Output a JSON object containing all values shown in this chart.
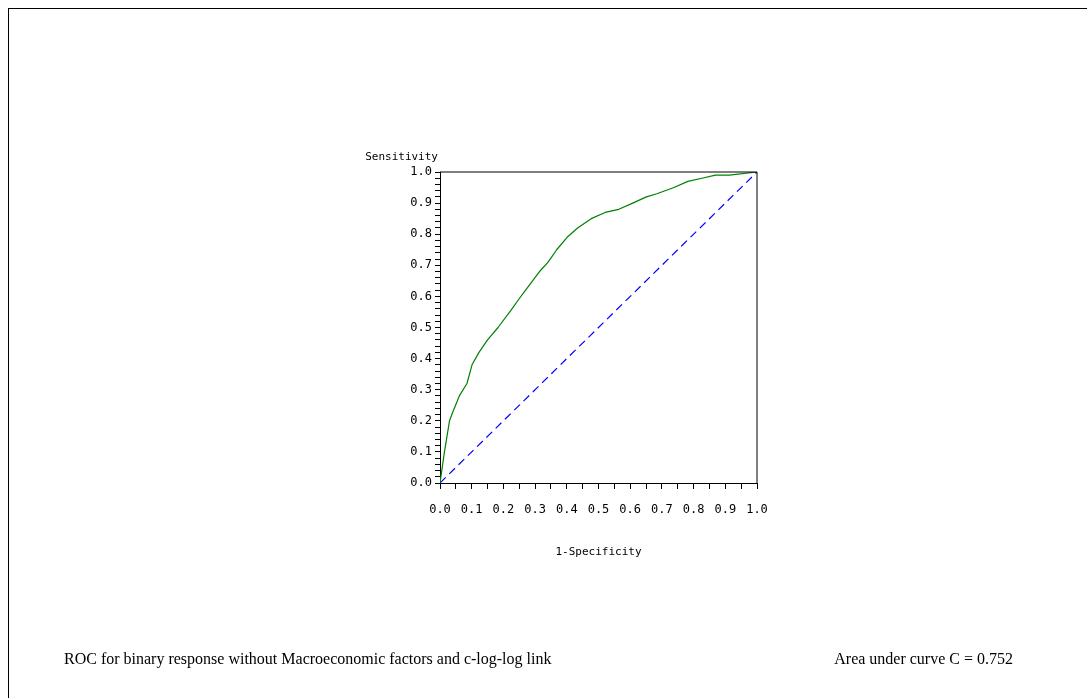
{
  "chart_data": {
    "type": "line",
    "xlabel": "1-Specificity",
    "ylabel": "Sensitivity",
    "annotations": [
      "ROC for binary response without Macroeconomic factors and c-log-log link",
      "Area under curve C = 0.752"
    ],
    "xlim": [
      0,
      1
    ],
    "ylim": [
      0,
      1
    ],
    "xticks": [
      {
        "value": 0,
        "label": "0.0"
      },
      {
        "value": 0.05,
        "label": null
      },
      {
        "value": 0.1,
        "label": "0.1"
      },
      {
        "value": 0.15,
        "label": null
      },
      {
        "value": 0.2,
        "label": "0.2"
      },
      {
        "value": 0.25,
        "label": null
      },
      {
        "value": 0.3,
        "label": "0.3"
      },
      {
        "value": 0.35,
        "label": null
      },
      {
        "value": 0.4,
        "label": "0.4"
      },
      {
        "value": 0.45,
        "label": null
      },
      {
        "value": 0.5,
        "label": "0.5"
      },
      {
        "value": 0.55,
        "label": null
      },
      {
        "value": 0.6,
        "label": "0.6"
      },
      {
        "value": 0.65,
        "label": null
      },
      {
        "value": 0.7,
        "label": "0.7"
      },
      {
        "value": 0.75,
        "label": null
      },
      {
        "value": 0.8,
        "label": "0.8"
      },
      {
        "value": 0.85,
        "label": null
      },
      {
        "value": 0.9,
        "label": "0.9"
      },
      {
        "value": 0.95,
        "label": null
      },
      {
        "value": 1,
        "label": "1.0"
      }
    ],
    "yticks": [
      {
        "value": 0,
        "label": "0.0"
      },
      {
        "value": 0.02,
        "label": null
      },
      {
        "value": 0.04,
        "label": null
      },
      {
        "value": 0.06,
        "label": null
      },
      {
        "value": 0.08,
        "label": null
      },
      {
        "value": 0.1,
        "label": "0.1"
      },
      {
        "value": 0.12,
        "label": null
      },
      {
        "value": 0.14,
        "label": null
      },
      {
        "value": 0.16,
        "label": null
      },
      {
        "value": 0.18,
        "label": null
      },
      {
        "value": 0.2,
        "label": "0.2"
      },
      {
        "value": 0.22,
        "label": null
      },
      {
        "value": 0.24,
        "label": null
      },
      {
        "value": 0.26,
        "label": null
      },
      {
        "value": 0.28,
        "label": null
      },
      {
        "value": 0.3,
        "label": "0.3"
      },
      {
        "value": 0.32,
        "label": null
      },
      {
        "value": 0.34,
        "label": null
      },
      {
        "value": 0.36,
        "label": null
      },
      {
        "value": 0.38,
        "label": null
      },
      {
        "value": 0.4,
        "label": "0.4"
      },
      {
        "value": 0.42,
        "label": null
      },
      {
        "value": 0.44,
        "label": null
      },
      {
        "value": 0.46,
        "label": null
      },
      {
        "value": 0.48,
        "label": null
      },
      {
        "value": 0.5,
        "label": "0.5"
      },
      {
        "value": 0.52,
        "label": null
      },
      {
        "value": 0.54,
        "label": null
      },
      {
        "value": 0.56,
        "label": null
      },
      {
        "value": 0.58,
        "label": null
      },
      {
        "value": 0.6,
        "label": "0.6"
      },
      {
        "value": 0.62,
        "label": null
      },
      {
        "value": 0.64,
        "label": null
      },
      {
        "value": 0.66,
        "label": null
      },
      {
        "value": 0.68,
        "label": null
      },
      {
        "value": 0.7,
        "label": "0.7"
      },
      {
        "value": 0.72,
        "label": null
      },
      {
        "value": 0.74,
        "label": null
      },
      {
        "value": 0.76,
        "label": null
      },
      {
        "value": 0.78,
        "label": null
      },
      {
        "value": 0.8,
        "label": "0.8"
      },
      {
        "value": 0.82,
        "label": null
      },
      {
        "value": 0.84,
        "label": null
      },
      {
        "value": 0.86,
        "label": null
      },
      {
        "value": 0.88,
        "label": null
      },
      {
        "value": 0.9,
        "label": "0.9"
      },
      {
        "value": 0.92,
        "label": null
      },
      {
        "value": 0.94,
        "label": null
      },
      {
        "value": 0.96,
        "label": null
      },
      {
        "value": 0.98,
        "label": null
      },
      {
        "value": 1,
        "label": "1.0"
      }
    ],
    "grid": false,
    "legend": false,
    "series": [
      {
        "color": "#008000",
        "line_style": "solid",
        "x": [
          0,
          0.014,
          0.03,
          0.041,
          0.061,
          0.085,
          0.101,
          0.123,
          0.15,
          0.183,
          0.227,
          0.248,
          0.27,
          0.314,
          0.341,
          0.368,
          0.401,
          0.434,
          0.477,
          0.521,
          0.564,
          0.608,
          0.651,
          0.684,
          0.738,
          0.782,
          0.826,
          0.869,
          0.913,
          1
        ],
        "values": [
          0,
          0.1,
          0.2,
          0.23,
          0.28,
          0.32,
          0.38,
          0.42,
          0.46,
          0.5,
          0.56,
          0.59,
          0.62,
          0.68,
          0.71,
          0.75,
          0.79,
          0.82,
          0.85,
          0.87,
          0.88,
          0.9,
          0.92,
          0.93,
          0.95,
          0.97,
          0.98,
          0.99,
          0.99,
          1
        ]
      },
      {
        "color": "#0000ff",
        "line_style": "dashed",
        "x": [
          0,
          1
        ],
        "values": [
          0,
          1
        ]
      }
    ]
  }
}
